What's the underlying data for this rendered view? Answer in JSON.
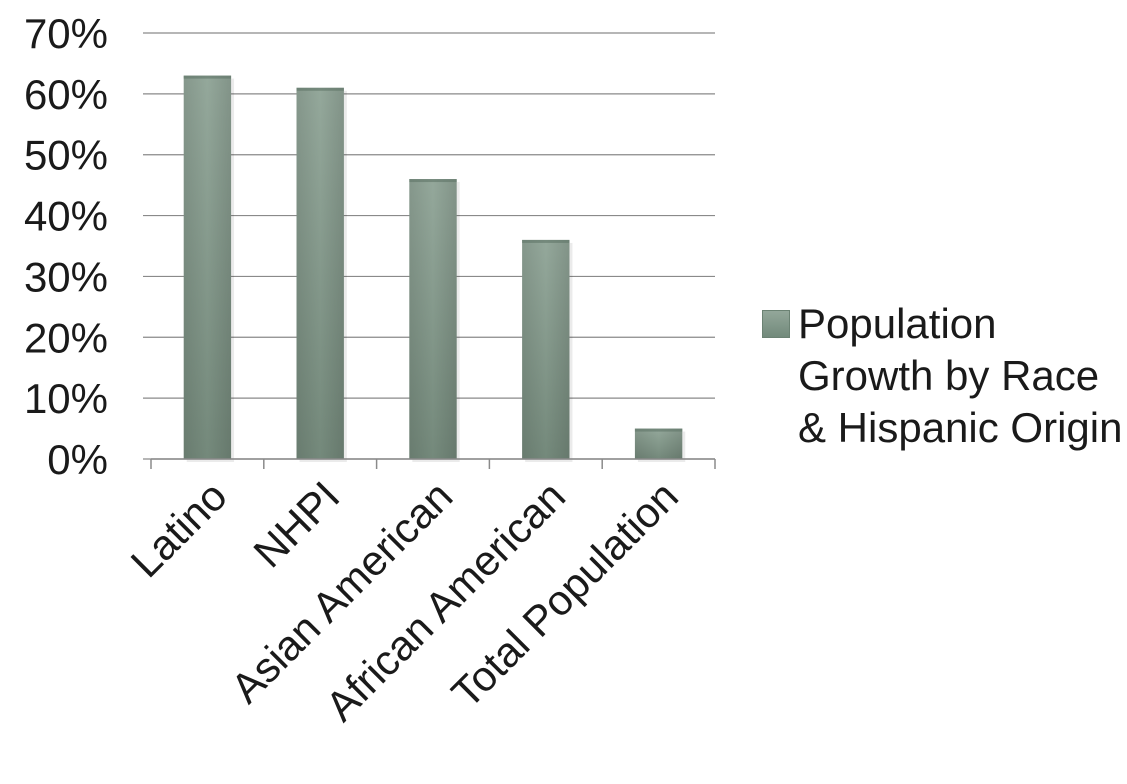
{
  "chart_data": {
    "type": "bar",
    "categories": [
      "Latino",
      "NHPI",
      "Asian American",
      "African American",
      "Total Population"
    ],
    "series": [
      {
        "name": "Population Growth by Race & Hispanic Origin",
        "values": [
          63,
          61,
          46,
          36,
          5
        ]
      }
    ],
    "yticks": [
      "0%",
      "10%",
      "20%",
      "30%",
      "40%",
      "50%",
      "60%",
      "70%"
    ],
    "ylim": [
      0,
      70
    ],
    "grid": true,
    "legend_position": "right",
    "bar_color": "#7f9585"
  }
}
